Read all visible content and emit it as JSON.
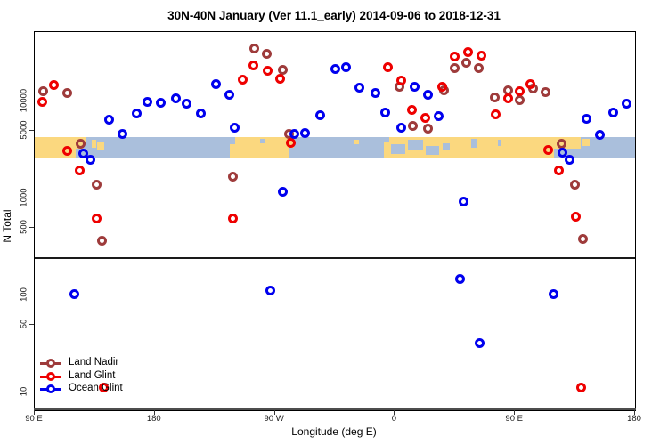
{
  "chart_data": {
    "type": "scatter",
    "title": "30N-40N January (Ver 11.1_early)   2014-09-06 to 2018-12-31",
    "xlabel": "Longitude (deg E)",
    "ylabel": "N Total",
    "xlim": [
      90,
      540
    ],
    "ylim": [
      6.55,
      51900
    ],
    "y_scale": "log10",
    "grid": false,
    "legend_position": "bottom-left-inside",
    "x_ticks": [
      {
        "v": 90,
        "label": "90 E"
      },
      {
        "v": 180,
        "label": "180"
      },
      {
        "v": 270,
        "label": "90 W"
      },
      {
        "v": 360,
        "label": "0"
      },
      {
        "v": 450,
        "label": "90 E"
      },
      {
        "v": 540,
        "label": "180"
      }
    ],
    "y_ticks": [
      {
        "v": 10000,
        "label": "10000"
      },
      {
        "v": 5000,
        "label": "5000"
      },
      {
        "v": 1000,
        "label": "1000"
      },
      {
        "v": 500,
        "label": "500"
      },
      {
        "v": 100,
        "label": "100"
      },
      {
        "v": 50,
        "label": "50"
      },
      {
        "v": 10,
        "label": "10"
      }
    ],
    "separator_value": 243,
    "colors": {
      "land_nadir": "#9E3B3B",
      "land_glint": "#EE0000",
      "ocean_glint": "#0000EE",
      "map_land": "#FBD87F",
      "map_sea": "#AABFDC"
    },
    "map_band": {
      "value_top": 4300,
      "value_bottom": 2630,
      "land_segments": [
        {
          "x1": 90,
          "x2": 121,
          "t": 0,
          "b": 1
        },
        {
          "x1": 121,
          "x2": 126,
          "t": 0,
          "b": 0.55
        },
        {
          "x1": 126,
          "x2": 129,
          "t": 0,
          "b": 0.3
        },
        {
          "x1": 133,
          "x2": 136,
          "t": 0.15,
          "b": 0.5
        },
        {
          "x1": 137,
          "x2": 142,
          "t": 0.25,
          "b": 0.65
        },
        {
          "x1": 236,
          "x2": 240,
          "t": 0.35,
          "b": 1
        },
        {
          "x1": 240,
          "x2": 280,
          "t": 0,
          "b": 1
        },
        {
          "x1": 280,
          "x2": 284,
          "t": 0,
          "b": 0.5
        },
        {
          "x1": 330,
          "x2": 333,
          "t": 0.15,
          "b": 0.35
        },
        {
          "x1": 352,
          "x2": 356,
          "t": 0.25,
          "b": 1
        },
        {
          "x1": 356,
          "x2": 404,
          "t": 0,
          "b": 1
        },
        {
          "x1": 404,
          "x2": 479,
          "t": 0,
          "b": 1
        },
        {
          "x1": 479,
          "x2": 499,
          "t": 0,
          "b": 0.55
        },
        {
          "x1": 500,
          "x2": 506,
          "t": 0.1,
          "b": 0.45
        }
      ],
      "sea_patches": [
        {
          "x1": 357,
          "x2": 368,
          "t": 0.35,
          "b": 0.8
        },
        {
          "x1": 370,
          "x2": 381,
          "t": 0.15,
          "b": 0.6
        },
        {
          "x1": 383,
          "x2": 393,
          "t": 0.45,
          "b": 0.85
        },
        {
          "x1": 396,
          "x2": 401,
          "t": 0.3,
          "b": 0.6
        },
        {
          "x1": 417,
          "x2": 421,
          "t": 0.1,
          "b": 0.5
        },
        {
          "x1": 437,
          "x2": 440,
          "t": 0.15,
          "b": 0.45
        },
        {
          "x1": 259,
          "x2": 263,
          "t": 0.1,
          "b": 0.3
        }
      ]
    },
    "series": [
      {
        "name": "Land Nadir",
        "color_key": "land_nadir",
        "points": [
          [
            96.7,
            12600
          ],
          [
            114.7,
            12100
          ],
          [
            125,
            3630
          ],
          [
            137,
            1380
          ],
          [
            141,
            365
          ],
          [
            239,
            1660
          ],
          [
            255,
            34700
          ],
          [
            264,
            30700
          ],
          [
            276,
            20900
          ],
          [
            281,
            4570
          ],
          [
            364,
            14000
          ],
          [
            374,
            5500
          ],
          [
            385,
            5200
          ],
          [
            397,
            12900
          ],
          [
            405,
            21900
          ],
          [
            414,
            24800
          ],
          [
            423,
            21900
          ],
          [
            435,
            10900
          ],
          [
            445,
            13000
          ],
          [
            454,
            10300
          ],
          [
            464,
            13400
          ],
          [
            473,
            12300
          ],
          [
            485,
            3630
          ],
          [
            495,
            1380
          ],
          [
            501,
            375
          ]
        ]
      },
      {
        "name": "Land Glint",
        "color_key": "land_glint",
        "points": [
          [
            96,
            9800
          ],
          [
            104.7,
            14600
          ],
          [
            115,
            3060
          ],
          [
            124,
            1940
          ],
          [
            137,
            620
          ],
          [
            142,
            11
          ],
          [
            239,
            610
          ],
          [
            246,
            16600
          ],
          [
            254,
            23300
          ],
          [
            265,
            20500
          ],
          [
            274,
            17000
          ],
          [
            282,
            3700
          ],
          [
            355,
            22300
          ],
          [
            365,
            16200
          ],
          [
            373,
            8100
          ],
          [
            383,
            6700
          ],
          [
            396,
            14000
          ],
          [
            405,
            28700
          ],
          [
            415,
            31900
          ],
          [
            425,
            29300
          ],
          [
            436,
            7300
          ],
          [
            445,
            10700
          ],
          [
            454,
            12700
          ],
          [
            462,
            14900
          ],
          [
            475,
            3130
          ],
          [
            483,
            1940
          ],
          [
            496,
            640
          ],
          [
            500,
            11
          ]
        ]
      },
      {
        "name": "Ocean Glint",
        "color_key": "ocean_glint",
        "points": [
          [
            120,
            103
          ],
          [
            127,
            2870
          ],
          [
            132,
            2500
          ],
          [
            146,
            6400
          ],
          [
            156,
            4600
          ],
          [
            167,
            7400
          ],
          [
            175,
            9800
          ],
          [
            185,
            9600
          ],
          [
            196,
            10600
          ],
          [
            204,
            9400
          ],
          [
            215,
            7400
          ],
          [
            226,
            15000
          ],
          [
            236,
            11600
          ],
          [
            240,
            5300
          ],
          [
            267,
            112
          ],
          [
            276,
            1160
          ],
          [
            285,
            4600
          ],
          [
            293,
            4700
          ],
          [
            304,
            7100
          ],
          [
            316,
            21400
          ],
          [
            324,
            22300
          ],
          [
            334,
            13700
          ],
          [
            346,
            12100
          ],
          [
            353,
            7600
          ],
          [
            365,
            5300
          ],
          [
            375,
            14000
          ],
          [
            385,
            11600
          ],
          [
            393,
            7000
          ],
          [
            409,
            146
          ],
          [
            412,
            920
          ],
          [
            424,
            32
          ],
          [
            479,
            103
          ],
          [
            486,
            2930
          ],
          [
            491,
            2480
          ],
          [
            504,
            6500
          ],
          [
            514,
            4500
          ],
          [
            524,
            7600
          ],
          [
            534,
            9400
          ]
        ]
      }
    ],
    "legend": [
      {
        "label": "Land Nadir",
        "color_key": "land_nadir"
      },
      {
        "label": "Land Glint",
        "color_key": "land_glint"
      },
      {
        "label": "Ocean Glint",
        "color_key": "ocean_glint"
      }
    ]
  }
}
